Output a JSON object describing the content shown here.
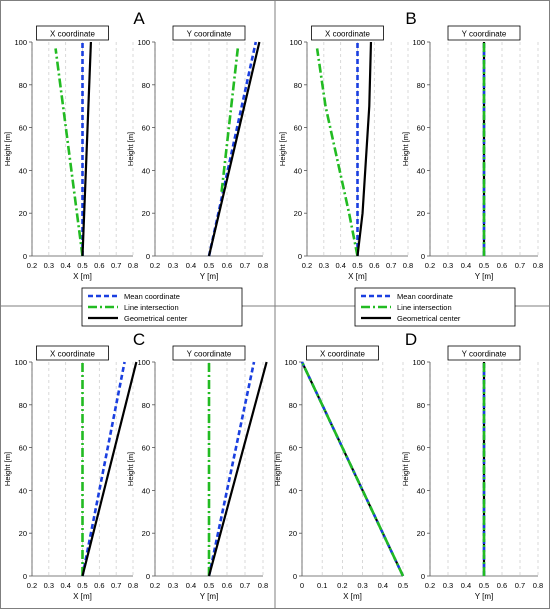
{
  "colors": {
    "mean": "#1a3fe0",
    "line_intersection": "#22bb22",
    "geometric_center": "#000000",
    "grid": "#cfcfcf",
    "border": "#7f7f7f"
  },
  "legend": {
    "items": [
      {
        "key": "mean",
        "label": "Mean coordinate",
        "style": "dash"
      },
      {
        "key": "line_intersection",
        "label": "Line intersection",
        "style": "dashdot"
      },
      {
        "key": "geometric_center",
        "label": "Geometrical center",
        "style": "solid"
      }
    ]
  },
  "chart_data": [
    {
      "panel": "A",
      "type": "line",
      "subplots": [
        {
          "title": "X coordinate",
          "xlabel": "X [m]",
          "ylabel": "Height [m]",
          "xlim": [
            0.2,
            0.8
          ],
          "ylim": [
            0,
            100
          ],
          "xticks": [
            "0.2",
            "0.3",
            "0.4",
            "0.5",
            "0.6",
            "0.7",
            "0.8"
          ],
          "yticks": [
            "0",
            "20",
            "40",
            "60",
            "80",
            "100"
          ],
          "series": [
            {
              "key": "mean",
              "x": [
                0.5,
                0.5
              ],
              "y": [
                0,
                100
              ]
            },
            {
              "key": "line_intersection",
              "x": [
                0.5,
                0.34
              ],
              "y": [
                0,
                97
              ]
            },
            {
              "key": "geometric_center",
              "x": [
                0.5,
                0.55
              ],
              "y": [
                0,
                100
              ]
            }
          ]
        },
        {
          "title": "Y coordinate",
          "xlabel": "Y [m]",
          "ylabel": "Height [m]",
          "xlim": [
            0.2,
            0.8
          ],
          "ylim": [
            0,
            100
          ],
          "xticks": [
            "0.2",
            "0.3",
            "0.4",
            "0.5",
            "0.6",
            "0.7",
            "0.8"
          ],
          "yticks": [
            "0",
            "20",
            "40",
            "60",
            "80",
            "100"
          ],
          "series": [
            {
              "key": "mean",
              "x": [
                0.5,
                0.76
              ],
              "y": [
                0,
                100
              ]
            },
            {
              "key": "line_intersection",
              "x": [
                0.57,
                0.66
              ],
              "y": [
                30,
                97
              ]
            },
            {
              "key": "geometric_center",
              "x": [
                0.5,
                0.78
              ],
              "y": [
                0,
                100
              ]
            }
          ]
        }
      ]
    },
    {
      "panel": "B",
      "type": "line",
      "subplots": [
        {
          "title": "X coordinate",
          "xlabel": "X [m]",
          "ylabel": "Height [m]",
          "xlim": [
            0.2,
            0.8
          ],
          "ylim": [
            0,
            100
          ],
          "xticks": [
            "0.2",
            "0.3",
            "0.4",
            "0.5",
            "0.6",
            "0.7",
            "0.8"
          ],
          "yticks": [
            "0",
            "20",
            "40",
            "60",
            "80",
            "100"
          ],
          "series": [
            {
              "key": "mean",
              "x": [
                0.5,
                0.5
              ],
              "y": [
                0,
                100
              ]
            },
            {
              "key": "line_intersection",
              "x": [
                0.5,
                0.45,
                0.38,
                0.31,
                0.26
              ],
              "y": [
                0,
                20,
                45,
                70,
                97
              ]
            },
            {
              "key": "geometric_center",
              "x": [
                0.5,
                0.53,
                0.55,
                0.57,
                0.58
              ],
              "y": [
                0,
                20,
                45,
                70,
                100
              ]
            }
          ]
        },
        {
          "title": "Y coordinate",
          "xlabel": "Y [m]",
          "ylabel": "Height [m]",
          "xlim": [
            0.2,
            0.8
          ],
          "ylim": [
            0,
            100
          ],
          "xticks": [
            "0.2",
            "0.3",
            "0.4",
            "0.5",
            "0.6",
            "0.7",
            "0.8"
          ],
          "yticks": [
            "0",
            "20",
            "40",
            "60",
            "80",
            "100"
          ],
          "series": [
            {
              "key": "geometric_center",
              "x": [
                0.5,
                0.5
              ],
              "y": [
                0,
                100
              ]
            },
            {
              "key": "mean",
              "x": [
                0.5,
                0.5
              ],
              "y": [
                0,
                100
              ]
            },
            {
              "key": "line_intersection",
              "x": [
                0.5,
                0.5
              ],
              "y": [
                0,
                100
              ]
            }
          ]
        }
      ]
    },
    {
      "panel": "C",
      "type": "line",
      "subplots": [
        {
          "title": "X coordinate",
          "xlabel": "X [m]",
          "ylabel": "Height [m]",
          "xlim": [
            0.2,
            0.8
          ],
          "ylim": [
            0,
            100
          ],
          "xticks": [
            "0.2",
            "0.3",
            "0.4",
            "0.5",
            "0.6",
            "0.7",
            "0.8"
          ],
          "yticks": [
            "0",
            "20",
            "40",
            "60",
            "80",
            "100"
          ],
          "series": [
            {
              "key": "mean",
              "x": [
                0.5,
                0.75
              ],
              "y": [
                0,
                100
              ]
            },
            {
              "key": "line_intersection",
              "x": [
                0.5,
                0.5
              ],
              "y": [
                0,
                100
              ]
            },
            {
              "key": "geometric_center",
              "x": [
                0.5,
                0.82
              ],
              "y": [
                0,
                100
              ]
            }
          ]
        },
        {
          "title": "Y coordinate",
          "xlabel": "Y [m]",
          "ylabel": "Height [m]",
          "xlim": [
            0.2,
            0.8
          ],
          "ylim": [
            0,
            100
          ],
          "xticks": [
            "0.2",
            "0.3",
            "0.4",
            "0.5",
            "0.6",
            "0.7",
            "0.8"
          ],
          "yticks": [
            "0",
            "20",
            "40",
            "60",
            "80",
            "100"
          ],
          "series": [
            {
              "key": "mean",
              "x": [
                0.5,
                0.75
              ],
              "y": [
                0,
                100
              ]
            },
            {
              "key": "line_intersection",
              "x": [
                0.5,
                0.5
              ],
              "y": [
                0,
                100
              ]
            },
            {
              "key": "geometric_center",
              "x": [
                0.5,
                0.82
              ],
              "y": [
                0,
                100
              ]
            }
          ]
        }
      ]
    },
    {
      "panel": "D",
      "type": "line",
      "subplots": [
        {
          "title": "X coordinate",
          "xlabel": "X [m]",
          "ylabel": "Height [m]",
          "xlim": [
            0,
            0.5
          ],
          "ylim": [
            0,
            100
          ],
          "xticks": [
            "0",
            "0.1",
            "0.2",
            "0.3",
            "0.4",
            "0.5"
          ],
          "yticks": [
            "0",
            "20",
            "40",
            "60",
            "80",
            "100"
          ],
          "series": [
            {
              "key": "geometric_center",
              "x": [
                0.5,
                0
              ],
              "y": [
                0,
                100
              ]
            },
            {
              "key": "mean",
              "x": [
                0.5,
                0
              ],
              "y": [
                0,
                100
              ]
            },
            {
              "key": "line_intersection",
              "x": [
                0.5,
                0
              ],
              "y": [
                0,
                100
              ]
            }
          ]
        },
        {
          "title": "Y coordinate",
          "xlabel": "Y [m]",
          "ylabel": "Height [m]",
          "xlim": [
            0.2,
            0.8
          ],
          "ylim": [
            0,
            100
          ],
          "xticks": [
            "0.2",
            "0.3",
            "0.4",
            "0.5",
            "0.6",
            "0.7",
            "0.8"
          ],
          "yticks": [
            "0",
            "20",
            "40",
            "60",
            "80",
            "100"
          ],
          "series": [
            {
              "key": "geometric_center",
              "x": [
                0.5,
                0.5
              ],
              "y": [
                0,
                100
              ]
            },
            {
              "key": "mean",
              "x": [
                0.5,
                0.5
              ],
              "y": [
                0,
                100
              ]
            },
            {
              "key": "line_intersection",
              "x": [
                0.5,
                0.5
              ],
              "y": [
                0,
                100
              ]
            }
          ]
        }
      ]
    }
  ]
}
